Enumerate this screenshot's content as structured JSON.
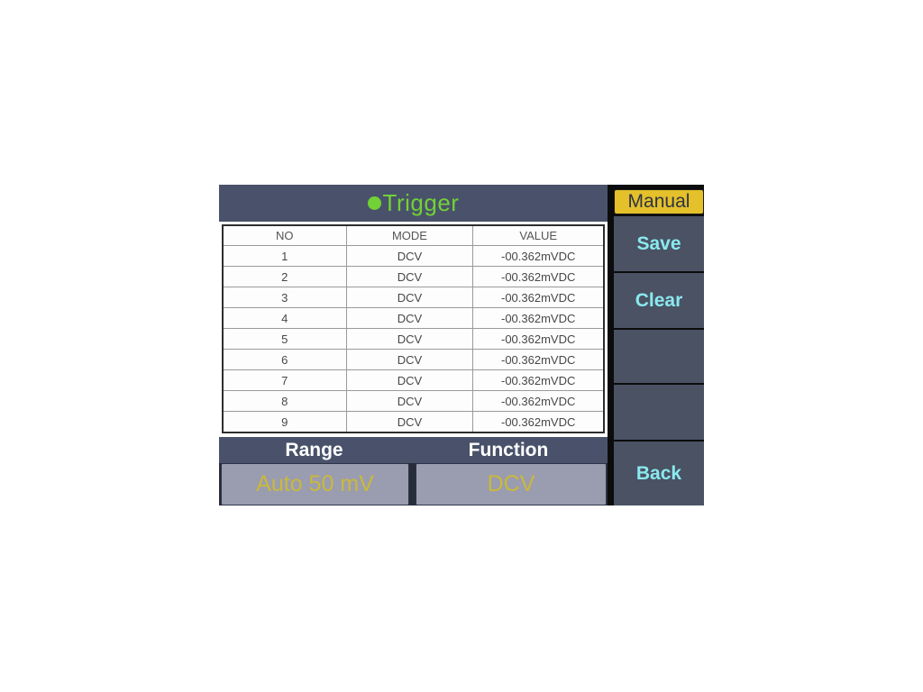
{
  "screen": {
    "title": "Trigger"
  },
  "table": {
    "headers": [
      "NO",
      "MODE",
      "VALUE"
    ],
    "rows": [
      {
        "no": "1",
        "mode": "DCV",
        "value": "-00.362mVDC"
      },
      {
        "no": "2",
        "mode": "DCV",
        "value": "-00.362mVDC"
      },
      {
        "no": "3",
        "mode": "DCV",
        "value": "-00.362mVDC"
      },
      {
        "no": "4",
        "mode": "DCV",
        "value": "-00.362mVDC"
      },
      {
        "no": "5",
        "mode": "DCV",
        "value": "-00.362mVDC"
      },
      {
        "no": "6",
        "mode": "DCV",
        "value": "-00.362mVDC"
      },
      {
        "no": "7",
        "mode": "DCV",
        "value": "-00.362mVDC"
      },
      {
        "no": "8",
        "mode": "DCV",
        "value": "-00.362mVDC"
      },
      {
        "no": "9",
        "mode": "DCV",
        "value": "-00.362mVDC"
      }
    ]
  },
  "footer": {
    "range_label": "Range",
    "function_label": "Function",
    "range_value": "Auto 50 mV",
    "function_value": "DCV"
  },
  "sidebar": {
    "mode_label": "Manual",
    "buttons": [
      {
        "label": "Save"
      },
      {
        "label": "Clear"
      },
      {
        "label": ""
      },
      {
        "label": ""
      },
      {
        "label": "Back"
      }
    ]
  },
  "colors": {
    "panel_navy": "#49526a",
    "softkey_slate": "#4a5264",
    "manual_gold": "#e4c02a",
    "softkey_text_cyan": "#8ae9ee",
    "title_green": "#72d136",
    "grey_button": "#9a9cb0",
    "grey_button_text_yellow": "#c9b93b",
    "table_bg": "#ffffff"
  }
}
